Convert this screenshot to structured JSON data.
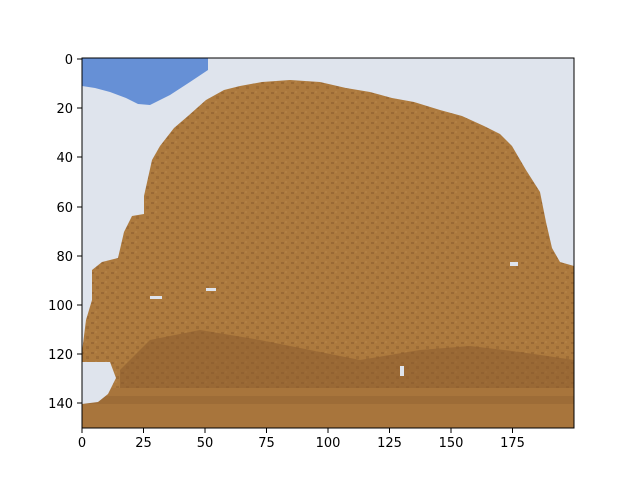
{
  "image": {
    "axes": {
      "x_range": [
        0,
        200
      ],
      "y_range": [
        150,
        0
      ],
      "x_ticks": [
        0,
        25,
        50,
        75,
        100,
        125,
        150,
        175
      ],
      "y_ticks": [
        0,
        20,
        40,
        60,
        80,
        100,
        120,
        140
      ]
    },
    "colors": {
      "sky": "#dfe4ed",
      "sky_patch": "#6690d6",
      "foliage": "#ad7a3e",
      "foliage_shadow": "#8a5b2d",
      "ground": "#a8753c",
      "axis": "#000000"
    }
  }
}
